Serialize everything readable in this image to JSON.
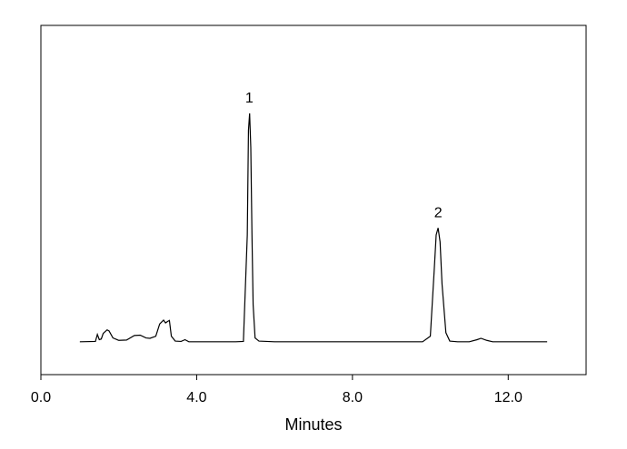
{
  "chart_data": {
    "type": "line",
    "x_label": "Minutes",
    "xlim": [
      0,
      14
    ],
    "ylim": [
      0,
      100
    ],
    "xticks": [
      {
        "value": 0,
        "label": "0.0"
      },
      {
        "value": 4,
        "label": "4.0"
      },
      {
        "value": 8,
        "label": "8.0"
      },
      {
        "value": 12,
        "label": "12.0"
      }
    ],
    "series": [
      {
        "color": "#000000",
        "x": [
          1.0,
          1.4,
          1.45,
          1.5,
          1.55,
          1.6,
          1.7,
          1.75,
          1.85,
          2.0,
          2.2,
          2.4,
          2.55,
          2.7,
          2.8,
          2.95,
          3.05,
          3.15,
          3.2,
          3.25,
          3.3,
          3.35,
          3.45,
          3.6,
          3.7,
          3.8,
          4.5,
          5.0,
          5.2,
          5.3,
          5.33,
          5.36,
          5.39,
          5.42,
          5.45,
          5.5,
          5.6,
          6.0,
          8.0,
          9.8,
          10.0,
          10.1,
          10.15,
          10.2,
          10.25,
          10.3,
          10.4,
          10.5,
          10.7,
          11.0,
          11.2,
          11.3,
          11.45,
          11.6,
          12.0,
          13.0
        ],
        "values": [
          9.4,
          9.5,
          11.5,
          10.0,
          10.2,
          11.8,
          12.8,
          12.5,
          10.5,
          9.8,
          9.9,
          11.2,
          11.3,
          10.5,
          10.4,
          11.0,
          14.5,
          15.6,
          14.8,
          15.2,
          15.5,
          11.0,
          9.6,
          9.5,
          10.0,
          9.4,
          9.4,
          9.4,
          9.5,
          40,
          70,
          74.8,
          65,
          40,
          20,
          10.5,
          9.6,
          9.4,
          9.4,
          9.4,
          11,
          30,
          40,
          42,
          38,
          26,
          12,
          9.6,
          9.4,
          9.4,
          10.0,
          10.4,
          9.8,
          9.4,
          9.4,
          9.4
        ]
      }
    ],
    "annotations": [
      {
        "text": "1",
        "x": 5.35,
        "y": 74.8
      },
      {
        "text": "2",
        "x": 10.2,
        "y": 42
      }
    ]
  }
}
